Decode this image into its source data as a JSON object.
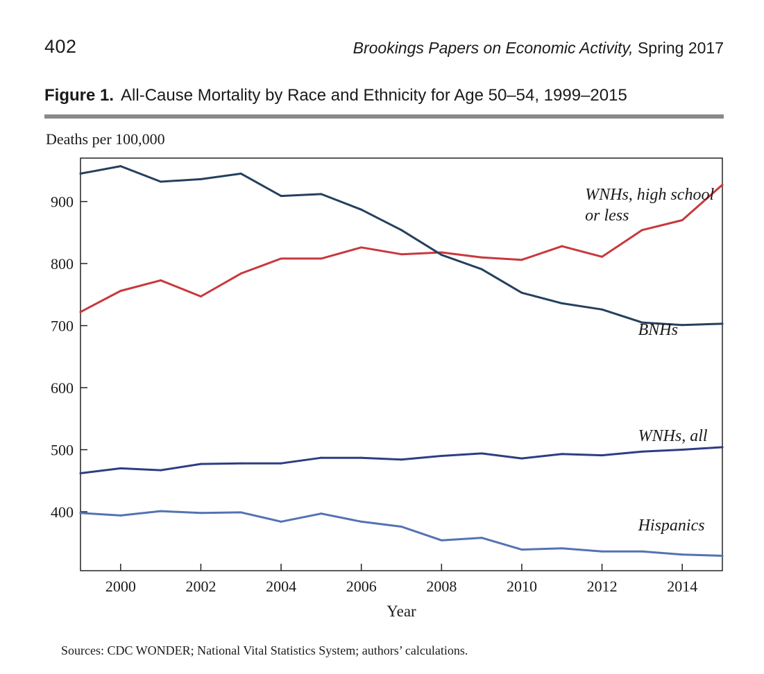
{
  "header": {
    "page_number": "402",
    "journal": "Brookings Papers on Economic Activity,",
    "issue": " Spring 2017"
  },
  "figure": {
    "label": "Figure 1.",
    "title": "All-Cause Mortality by Race and Ethnicity for Age 50–54, 1999–2015",
    "sources": "Sources: CDC WONDER; National Vital Statistics System; authors’ calculations."
  },
  "chart_data": {
    "type": "line",
    "title": "All-Cause Mortality by Race and Ethnicity for Age 50–54, 1999–2015",
    "xlabel": "Year",
    "ylabel": "Deaths per 100,000",
    "xlim": [
      1999,
      2015
    ],
    "ylim": [
      305,
      970
    ],
    "xticks": [
      2000,
      2002,
      2004,
      2006,
      2008,
      2010,
      2012,
      2014
    ],
    "yticks": [
      400,
      500,
      600,
      700,
      800,
      900
    ],
    "grid": false,
    "legend": "inline labels",
    "x": [
      1999,
      2000,
      2001,
      2002,
      2003,
      2004,
      2005,
      2006,
      2007,
      2008,
      2009,
      2010,
      2011,
      2012,
      2013,
      2014,
      2015
    ],
    "series": [
      {
        "name": "WNHs, high school\nor less",
        "color": "#c8383c",
        "values": [
          722,
          756,
          773,
          747,
          784,
          808,
          808,
          826,
          815,
          818,
          810,
          806,
          828,
          811,
          854,
          870,
          927
        ]
      },
      {
        "name": "BNHs",
        "color": "#25405e",
        "values": [
          945,
          957,
          932,
          936,
          945,
          909,
          912,
          887,
          854,
          814,
          791,
          753,
          736,
          726,
          705,
          701,
          703
        ]
      },
      {
        "name": "WNHs, all",
        "color": "#2e3d82",
        "values": [
          462,
          470,
          467,
          477,
          478,
          478,
          487,
          487,
          484,
          490,
          494,
          486,
          493,
          491,
          497,
          500,
          504
        ]
      },
      {
        "name": "Hispanics",
        "color": "#5373b2",
        "values": [
          398,
          394,
          401,
          398,
          399,
          384,
          397,
          384,
          376,
          354,
          358,
          339,
          341,
          336,
          336,
          331,
          329
        ]
      }
    ]
  }
}
